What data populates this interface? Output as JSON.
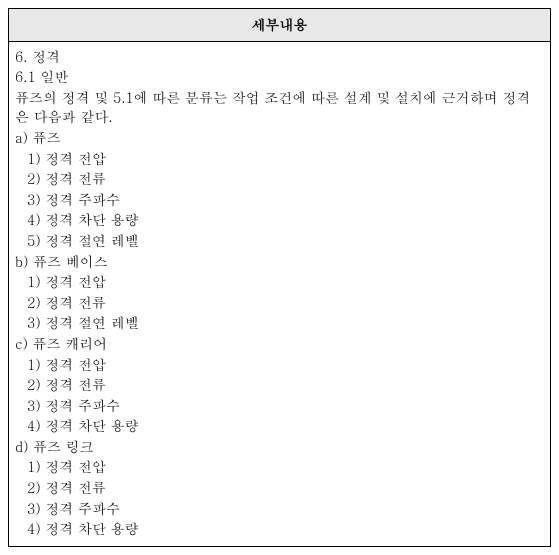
{
  "header": {
    "title": "세부내용"
  },
  "body": {
    "h1_num": "6. 정격",
    "h2_num": "6.1 일반",
    "intro": "퓨즈의 정격 및 5.1에 따른 분류는 작업 조건에 따른 설계 및 설치에 근거하며 정격은 다음과 같다.",
    "sections": [
      {
        "label": "a) 퓨즈",
        "items": [
          "1) 정격 전압",
          "2) 정격 전류",
          "3) 정격 주파수",
          "4) 정격 차단 용량",
          "5) 정격 절연 레벨"
        ]
      },
      {
        "label": "b) 퓨즈 베이스",
        "items": [
          "1) 정격 전압",
          "2) 정격 전류",
          "3) 정격 절연 레벨"
        ]
      },
      {
        "label": "c) 퓨즈 캐리어",
        "items": [
          "1) 정격 전압",
          "2) 정격 전류",
          "3) 정격 주파수",
          "4) 정격 차단 용량"
        ]
      },
      {
        "label": "d) 퓨즈 링크",
        "items": [
          "1) 정격 전압",
          "2) 정격 전류",
          "3) 정격 주파수",
          "4) 정격 차단 용량"
        ]
      }
    ]
  }
}
